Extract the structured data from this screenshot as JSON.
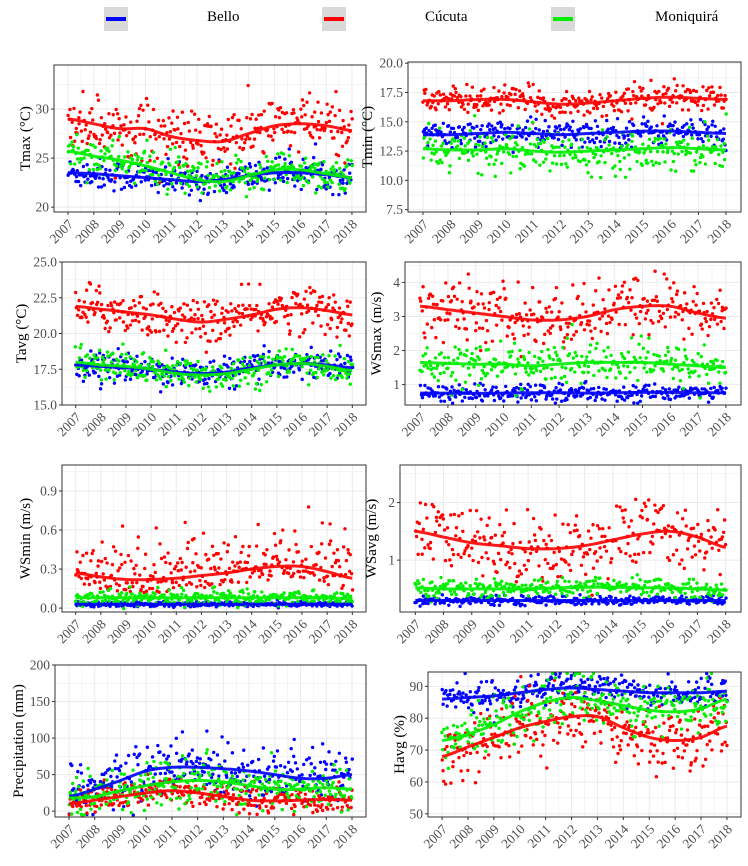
{
  "legend": {
    "items": [
      {
        "label": "Bello",
        "color": "#0000ff"
      },
      {
        "label": "Cúcuta",
        "color": "#ff0000"
      },
      {
        "label": "Moniquirá",
        "color": "#00ee00"
      }
    ]
  },
  "chart_data": [
    {
      "type": "scatter",
      "ylabel": "Tmax (°C)",
      "ylim": [
        19.5,
        34.5
      ],
      "yticks": [
        "20",
        "25",
        "30"
      ],
      "ytick_values": [
        20,
        25,
        30
      ],
      "x_ticks": [
        "2007",
        "2008",
        "2009",
        "2010",
        "2011",
        "2012",
        "2013",
        "2014",
        "2015",
        "2016",
        "2017",
        "2018"
      ],
      "series": [
        {
          "name": "Bello",
          "trend": [
            23.5,
            23.4,
            23.2,
            23.0,
            22.8,
            22.6,
            22.8,
            23.2,
            23.5,
            23.5,
            23.3,
            23.0
          ],
          "spread": 0.8
        },
        {
          "name": "Cúcuta",
          "trend": [
            29.0,
            28.5,
            28.0,
            28.0,
            27.2,
            26.8,
            26.7,
            27.5,
            28.3,
            28.5,
            28.3,
            27.8
          ],
          "spread": 1.5
        },
        {
          "name": "Moniquirá",
          "trend": [
            25.7,
            25.2,
            24.8,
            24.2,
            23.5,
            22.8,
            22.6,
            23.2,
            23.8,
            23.8,
            23.4,
            23.0
          ],
          "spread": 1.0
        }
      ]
    },
    {
      "type": "scatter",
      "ylabel": "Tmin (°C)",
      "ylim": [
        7.3,
        20.1
      ],
      "yticks": [
        "7.5",
        "10.0",
        "12.5",
        "15.0",
        "17.5",
        "20.0"
      ],
      "ytick_values": [
        7.5,
        10,
        12.5,
        15,
        17.5,
        20
      ],
      "x_ticks": [
        "2007",
        "2008",
        "2009",
        "2010",
        "2011",
        "2012",
        "2013",
        "2014",
        "2015",
        "2016",
        "2017",
        "2018"
      ],
      "series": [
        {
          "name": "Bello",
          "trend": [
            13.9,
            13.9,
            14.0,
            14.1,
            14.0,
            13.9,
            14.0,
            14.1,
            14.2,
            14.2,
            14.1,
            14.0
          ],
          "spread": 0.6
        },
        {
          "name": "Cúcuta",
          "trend": [
            16.8,
            16.8,
            16.9,
            16.9,
            16.7,
            16.5,
            16.6,
            16.8,
            17.0,
            17.1,
            17.0,
            16.9
          ],
          "spread": 0.6
        },
        {
          "name": "Moniquirá",
          "trend": [
            12.7,
            12.6,
            12.6,
            12.7,
            12.5,
            12.4,
            12.5,
            12.6,
            12.7,
            12.8,
            12.7,
            12.6
          ],
          "spread": 0.9
        }
      ]
    },
    {
      "type": "scatter",
      "ylabel": "Tavg (°C)",
      "ylim": [
        15.0,
        25.0
      ],
      "yticks": [
        "15.0",
        "17.5",
        "20.0",
        "22.5",
        "25.0"
      ],
      "ytick_values": [
        15,
        17.5,
        20,
        22.5,
        25
      ],
      "x_ticks": [
        "2007",
        "2008",
        "2009",
        "2010",
        "2011",
        "2012",
        "2013",
        "2014",
        "2015",
        "2016",
        "2017",
        "2018"
      ],
      "series": [
        {
          "name": "Bello",
          "trend": [
            17.8,
            17.7,
            17.6,
            17.5,
            17.3,
            17.2,
            17.3,
            17.6,
            17.8,
            17.9,
            17.8,
            17.6
          ],
          "spread": 0.5
        },
        {
          "name": "Cúcuta",
          "trend": [
            21.9,
            21.7,
            21.5,
            21.3,
            21.0,
            20.8,
            21.0,
            21.3,
            21.7,
            21.8,
            21.6,
            21.3
          ],
          "spread": 0.8
        },
        {
          "name": "Moniquirá",
          "trend": [
            18.0,
            17.8,
            17.7,
            17.5,
            17.2,
            17.1,
            17.2,
            17.5,
            17.8,
            17.9,
            17.7,
            17.4
          ],
          "spread": 0.6
        }
      ]
    },
    {
      "type": "scatter",
      "ylabel": "WSmax (m/s)",
      "ylim": [
        0.4,
        4.6
      ],
      "yticks": [
        "1",
        "2",
        "3",
        "4"
      ],
      "ytick_values": [
        1,
        2,
        3,
        4
      ],
      "x_ticks": [
        "2007",
        "2008",
        "2009",
        "2010",
        "2011",
        "2012",
        "2013",
        "2014",
        "2015",
        "2016",
        "2017",
        "2018"
      ],
      "series": [
        {
          "name": "Bello",
          "trend": [
            0.75,
            0.75,
            0.74,
            0.75,
            0.76,
            0.76,
            0.75,
            0.76,
            0.77,
            0.77,
            0.76,
            0.76
          ],
          "spread": 0.12
        },
        {
          "name": "Cúcuta",
          "trend": [
            3.3,
            3.2,
            3.1,
            3.0,
            2.9,
            2.9,
            3.0,
            3.2,
            3.3,
            3.3,
            3.1,
            2.95
          ],
          "spread": 0.45
        },
        {
          "name": "Moniquirá",
          "trend": [
            1.65,
            1.62,
            1.6,
            1.6,
            1.55,
            1.6,
            1.65,
            1.65,
            1.65,
            1.6,
            1.55,
            1.5
          ],
          "spread": 0.3
        }
      ]
    },
    {
      "type": "scatter",
      "ylabel": "WSmin (m/s)",
      "ylim": [
        -0.03,
        1.1
      ],
      "yticks": [
        "0.0",
        "0.3",
        "0.6",
        "0.9"
      ],
      "ytick_values": [
        0,
        0.3,
        0.6,
        0.9
      ],
      "x_ticks": [
        "2007",
        "2008",
        "2009",
        "2010",
        "2011",
        "2012",
        "2013",
        "2014",
        "2015",
        "2016",
        "2017",
        "2018"
      ],
      "series": [
        {
          "name": "Bello",
          "trend": [
            0.03,
            0.03,
            0.03,
            0.03,
            0.03,
            0.03,
            0.03,
            0.03,
            0.03,
            0.03,
            0.03,
            0.03
          ],
          "spread": 0.01
        },
        {
          "name": "Cúcuta",
          "trend": [
            0.27,
            0.24,
            0.22,
            0.22,
            0.23,
            0.25,
            0.27,
            0.3,
            0.32,
            0.32,
            0.28,
            0.23
          ],
          "spread": 0.17
        },
        {
          "name": "Moniquirá",
          "trend": [
            0.08,
            0.08,
            0.08,
            0.08,
            0.08,
            0.08,
            0.08,
            0.08,
            0.08,
            0.08,
            0.08,
            0.07
          ],
          "spread": 0.03
        }
      ]
    },
    {
      "type": "scatter",
      "ylabel": "WSavg (m/s)",
      "ylim": [
        0.1,
        2.65
      ],
      "yticks": [
        "1",
        "2"
      ],
      "ytick_values": [
        1,
        2
      ],
      "x_ticks": [
        "2007",
        "2008",
        "2009",
        "2010",
        "2011",
        "2012",
        "2013",
        "2014",
        "2015",
        "2016",
        "2017",
        "2018"
      ],
      "series": [
        {
          "name": "Bello",
          "trend": [
            0.3,
            0.3,
            0.3,
            0.3,
            0.3,
            0.3,
            0.3,
            0.3,
            0.3,
            0.3,
            0.3,
            0.3
          ],
          "spread": 0.04
        },
        {
          "name": "Cúcuta",
          "trend": [
            1.5,
            1.4,
            1.3,
            1.25,
            1.2,
            1.2,
            1.25,
            1.35,
            1.45,
            1.5,
            1.4,
            1.22
          ],
          "spread": 0.3
        },
        {
          "name": "Moniquirá",
          "trend": [
            0.52,
            0.5,
            0.5,
            0.5,
            0.5,
            0.52,
            0.53,
            0.53,
            0.52,
            0.52,
            0.5,
            0.48
          ],
          "spread": 0.08
        }
      ]
    },
    {
      "type": "scatter",
      "ylabel": "Precipitation (mm)",
      "ylim": [
        -8,
        200
      ],
      "yticks": [
        "0",
        "50",
        "100",
        "150",
        "200"
      ],
      "ytick_values": [
        0,
        50,
        100,
        150,
        200
      ],
      "x_ticks": [
        "2007",
        "2008",
        "2009",
        "2010",
        "2011",
        "2012",
        "2013",
        "2014",
        "2015",
        "2016",
        "2017",
        "2018"
      ],
      "series": [
        {
          "name": "Bello",
          "trend": [
            20,
            30,
            42,
            55,
            60,
            60,
            58,
            55,
            50,
            45,
            45,
            50
          ],
          "spread": 20
        },
        {
          "name": "Cúcuta",
          "trend": [
            10,
            15,
            20,
            25,
            28,
            25,
            20,
            15,
            14,
            15,
            16,
            15
          ],
          "spread": 10
        },
        {
          "name": "Moniquirá",
          "trend": [
            18,
            20,
            28,
            35,
            40,
            42,
            40,
            35,
            30,
            30,
            32,
            30
          ],
          "spread": 15
        }
      ]
    },
    {
      "type": "scatter",
      "ylabel": "Havg (%)",
      "ylim": [
        49,
        94.5
      ],
      "yticks": [
        "50",
        "60",
        "70",
        "80",
        "90"
      ],
      "ytick_values": [
        50,
        60,
        70,
        80,
        90
      ],
      "x_ticks": [
        "2007",
        "2008",
        "2009",
        "2010",
        "2011",
        "2012",
        "2013",
        "2014",
        "2015",
        "2016",
        "2017",
        "2018"
      ],
      "series": [
        {
          "name": "Bello",
          "trend": [
            86,
            86.5,
            87,
            88,
            89,
            89.5,
            89,
            88.5,
            88,
            88,
            88,
            88.5
          ],
          "spread": 2.5
        },
        {
          "name": "Cúcuta",
          "trend": [
            68,
            71,
            74,
            77,
            79,
            80.5,
            80.5,
            77,
            74,
            73,
            74,
            77.5
          ],
          "spread": 5
        },
        {
          "name": "Moniquirá",
          "trend": [
            73,
            75,
            78,
            82,
            85,
            86.5,
            85.5,
            84,
            82.5,
            82,
            83,
            86
          ],
          "spread": 4
        }
      ]
    }
  ]
}
